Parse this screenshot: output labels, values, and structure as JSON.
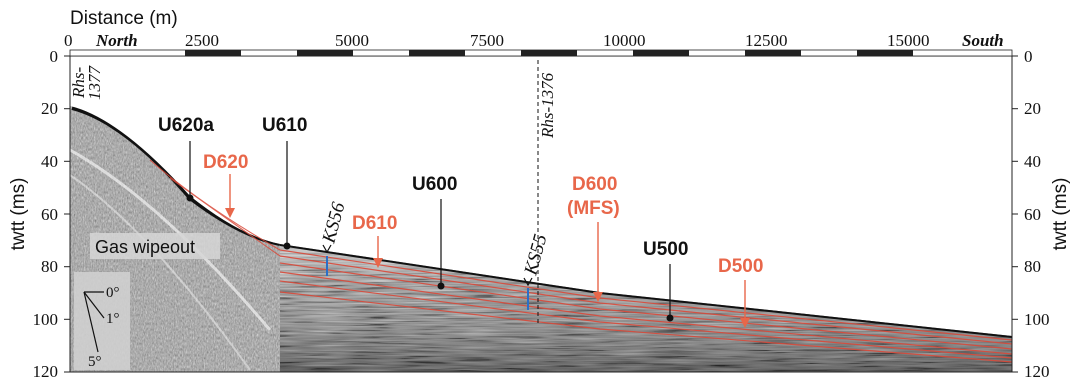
{
  "top_axis": {
    "title": "Distance (m)",
    "ticks": [
      "0",
      "2500",
      "5000",
      "7500",
      "10000",
      "12500",
      "15000"
    ],
    "north_label": "North",
    "south_label": "South"
  },
  "left_axis": {
    "title": "twtt (ms)",
    "ticks": [
      "0",
      "20",
      "40",
      "60",
      "80",
      "100",
      "120"
    ]
  },
  "right_axis": {
    "title": "twtt (ms)",
    "ticks": [
      "0",
      "20",
      "40",
      "60",
      "80",
      "100",
      "120"
    ]
  },
  "wells": {
    "rhs1377_line1": "Rhs-",
    "rhs1377_line2": "1377",
    "rhs1376": "Rhs-1376"
  },
  "units": {
    "u620a": "U620a",
    "u610": "U610",
    "u600": "U600",
    "u500": "U500"
  },
  "surfaces": {
    "d620": "D620",
    "d610": "D610",
    "d600_line1": "D600",
    "d600_line2": "(MFS)",
    "d500": "D500"
  },
  "markers": {
    "ks56": "KS56",
    "ks55": "KS55"
  },
  "annotations": {
    "gas": "Gas wipeout"
  },
  "dip_scale": {
    "a0": "0°",
    "a1": "1°",
    "a5": "5°"
  },
  "colors": {
    "surface_red": "#e8674a",
    "reflector_red": "#d94a3a",
    "marker_blue": "#2a6fc8",
    "seabed": "#111111"
  }
}
